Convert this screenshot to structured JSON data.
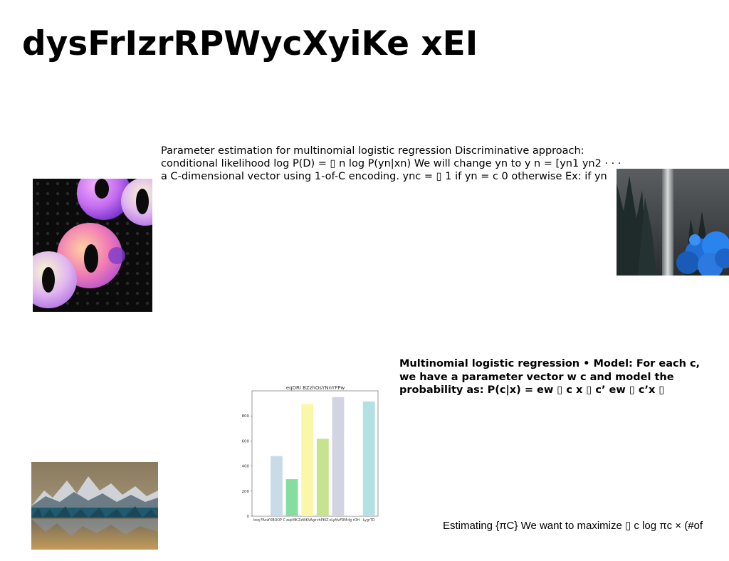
{
  "slide": {
    "title": "dysFrIzrRPWycXyiKe xEI",
    "para1_lines": [
      "Parameter estimation for multinomial logistic regression Discriminative approach:",
      "conditional likelihood log P(D) = ▯ n log P(yn|xn) We will change yn to y n = [yn1 yn2 · · ·",
      "a C-dimensional vector using 1-of-C encoding. ync = ▯ 1 if yn = c 0 otherwise Ex: if yn"
    ],
    "para2": "Multinomial logistic regression • Model: For each c, we have a parameter vector w c and model the probability as: P(c|x) = ew ▯ c x ▯ c’ ew ▯ c’x ▯",
    "para3": "Estimating {πC} We want to maximize ▯ c log πc × (#of"
  },
  "images": {
    "abstract": "abstract-discs-image",
    "forest": "waterfall-forest-image",
    "lake": "mountain-lake-image"
  },
  "chart_data": {
    "type": "bar",
    "title": "eqDRI BZzhOsYNnYFPw",
    "categories": [
      "bsq FAcu",
      "YXBOOP C",
      "zupMK",
      "ZzWKVAgz",
      "zhPKIZ",
      "xLyMvFRM",
      "dg rOH",
      "LygrTD"
    ],
    "values": [
      5,
      480,
      295,
      895,
      618,
      950,
      5,
      915
    ],
    "colors": [
      "#d7e59d",
      "#c9dbe9",
      "#86dda0",
      "#fbf7a8",
      "#c6e48f",
      "#d2d4e2",
      "#f6e3b5",
      "#b2e0e3"
    ],
    "yticks": [
      0,
      200,
      400,
      600,
      800
    ],
    "ylim": [
      0,
      1000
    ]
  }
}
